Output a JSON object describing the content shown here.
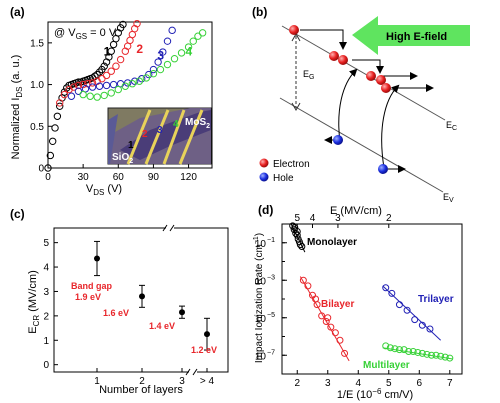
{
  "colors": {
    "black": "#000000",
    "red": "#e8262b",
    "blue": "#2121b5",
    "green": "#37d137",
    "arrow_green": "#5fe45f",
    "electron": "#e82020",
    "hole": "#1b2fe0",
    "gold": "#d9c24a",
    "substrate": "#7f7a62"
  },
  "chart_data": [
    {
      "panel": "(a)",
      "type": "scatter",
      "annotation": "@ V",
      "annotation_sub": "GS",
      "annotation_tail": " = 0 V",
      "ylabel": "Normalized I",
      "ylabel_sub": "DS",
      "ylabel_tail": " (a. u.)",
      "xlabel": "V",
      "xlabel_sub": "DS",
      "xlabel_tail": " (V)",
      "xlim": [
        0,
        140
      ],
      "ylim": [
        0,
        1.75
      ],
      "xticks": [
        0,
        30,
        60,
        90,
        120
      ],
      "yticks": [
        0,
        0.5,
        1.0,
        1.5
      ],
      "ytick_labels": [
        "0",
        "0.5",
        "1.0",
        "1.5"
      ],
      "series": [
        {
          "name": "1",
          "color": "#000000",
          "x": [
            0,
            2,
            4,
            6,
            8,
            10,
            12,
            14,
            16,
            18,
            20,
            22,
            24,
            26,
            28,
            30,
            32,
            34,
            36,
            38,
            40,
            42,
            44,
            46,
            48,
            50,
            52,
            54,
            56,
            58,
            60,
            62,
            64
          ],
          "y": [
            0,
            0.15,
            0.32,
            0.48,
            0.62,
            0.74,
            0.84,
            0.91,
            0.96,
            0.99,
            1.0,
            1.01,
            1.02,
            1.03,
            1.03,
            1.04,
            1.05,
            1.06,
            1.07,
            1.08,
            1.1,
            1.12,
            1.15,
            1.18,
            1.22,
            1.27,
            1.33,
            1.4,
            1.48,
            1.55,
            1.62,
            1.68,
            1.72
          ]
        },
        {
          "name": "2",
          "color": "#e8262b",
          "x": [
            10,
            14,
            18,
            22,
            26,
            30,
            34,
            38,
            42,
            46,
            50,
            54,
            58,
            62,
            66,
            68,
            70,
            72,
            74,
            76
          ],
          "y": [
            0.78,
            0.88,
            0.94,
            0.97,
            0.99,
            1.0,
            1.01,
            1.02,
            1.04,
            1.07,
            1.11,
            1.16,
            1.22,
            1.3,
            1.4,
            1.46,
            1.53,
            1.6,
            1.67,
            1.73
          ]
        },
        {
          "name": "3",
          "color": "#2121b5",
          "x": [
            20,
            26,
            32,
            38,
            44,
            50,
            56,
            62,
            68,
            74,
            80,
            86,
            90,
            94,
            98,
            102,
            106
          ],
          "y": [
            0.86,
            0.92,
            0.95,
            0.97,
            0.98,
            0.99,
            1.0,
            1.01,
            1.02,
            1.04,
            1.07,
            1.12,
            1.18,
            1.27,
            1.39,
            1.52,
            1.65
          ]
        },
        {
          "name": "4",
          "color": "#37d137",
          "x": [
            30,
            36,
            42,
            48,
            54,
            60,
            66,
            72,
            78,
            84,
            90,
            96,
            102,
            108,
            114,
            120,
            124,
            128,
            132
          ],
          "y": [
            0.88,
            0.86,
            0.85,
            0.87,
            0.9,
            0.94,
            0.98,
            1.01,
            1.04,
            1.08,
            1.13,
            1.18,
            1.24,
            1.31,
            1.38,
            1.45,
            1.52,
            1.58,
            1.62
          ]
        }
      ],
      "inset": {
        "label_mos2": "MoS",
        "label_mos2_sub": "2",
        "label_sio2": "SiO",
        "label_sio2_sub": "2",
        "numbers": [
          "1",
          "2",
          "3",
          "4"
        ]
      }
    },
    {
      "panel": "(c)",
      "type": "scatter",
      "ylabel": "E",
      "ylabel_sub": "CR",
      "ylabel_tail": " (MV/cm)",
      "xlabel": "Number of layers",
      "categories": [
        "1",
        "2",
        "3",
        "> 4"
      ],
      "values": [
        4.35,
        2.8,
        2.15,
        1.25
      ],
      "error": [
        0.7,
        0.45,
        0.25,
        0.65
      ],
      "annotations": [
        "Band gap",
        "1.9 eV",
        "1.6 eV",
        "1.4 eV",
        "1.2 eV"
      ],
      "ylim": [
        -0.3,
        5.6
      ],
      "yticks": [
        0,
        1,
        2,
        3,
        4,
        5
      ]
    },
    {
      "panel": "(d)",
      "type": "scatter",
      "ylabel": "Impact Ionization Rate (cm",
      "ylabel_sup": "−1",
      "ylabel_tail": ")",
      "xlabel": "1/E (10",
      "xlabel_sup": "−6",
      "xlabel_tail": " cm/V)",
      "top_xlabel": "E (MV/cm)",
      "top_xticks": [
        5,
        4,
        3,
        2
      ],
      "xlim": [
        1.5,
        7.4
      ],
      "xticks": [
        2,
        3,
        4,
        5,
        6,
        7
      ],
      "yscale": "log",
      "yexp_range": [
        -8,
        0
      ],
      "yticks_exp": [
        -7,
        -5,
        -3,
        -1
      ],
      "ytick_labels": [
        "10",
        "10",
        "10",
        "10"
      ],
      "ytick_sups": [
        "−7",
        "−5",
        "−3",
        "−1"
      ],
      "series": [
        {
          "name": "Monolayer",
          "color": "#000000",
          "x": [
            1.85,
            1.9,
            1.95,
            2.0,
            2.03,
            2.07,
            2.1,
            2.15,
            2.0,
            1.92
          ],
          "y_exp": [
            -0.1,
            -0.3,
            -0.5,
            -0.6,
            -0.8,
            -0.95,
            -1.1,
            -1.2,
            -0.4,
            -0.2
          ],
          "fit": [
            [
              1.8,
              0.0
            ],
            [
              2.25,
              -1.5
            ]
          ]
        },
        {
          "name": "Bilayer",
          "color": "#e8262b",
          "x": [
            2.2,
            2.35,
            2.5,
            2.65,
            2.8,
            2.95,
            3.1,
            3.25,
            3.4,
            3.55,
            2.6,
            3.0
          ],
          "y_exp": [
            -3.0,
            -3.3,
            -3.8,
            -4.3,
            -4.9,
            -5.2,
            -5.5,
            -5.8,
            -6.2,
            -6.9,
            -4.0,
            -5.0
          ],
          "fit": [
            [
              2.1,
              -2.8
            ],
            [
              3.7,
              -7.3
            ]
          ]
        },
        {
          "name": "Trilayer",
          "color": "#2121b5",
          "x": [
            4.9,
            5.1,
            5.35,
            5.6,
            5.85,
            6.1,
            6.35
          ],
          "y_exp": [
            -3.4,
            -3.7,
            -4.3,
            -4.6,
            -5.1,
            -5.4,
            -5.6
          ],
          "fit": [
            [
              4.8,
              -3.3
            ],
            [
              6.7,
              -6.2
            ]
          ]
        },
        {
          "name": "Multilayer",
          "color": "#37d137",
          "x": [
            4.9,
            5.05,
            5.2,
            5.35,
            5.5,
            5.65,
            5.8,
            5.95,
            6.1,
            6.25,
            6.4,
            6.55,
            6.7,
            6.85,
            7.0
          ],
          "y_exp": [
            -6.5,
            -6.6,
            -6.65,
            -6.7,
            -6.7,
            -6.8,
            -6.8,
            -6.85,
            -6.9,
            -6.95,
            -7.0,
            -7.0,
            -7.05,
            -7.1,
            -7.15
          ],
          "fit": [
            [
              4.8,
              -6.6
            ],
            [
              7.1,
              -7.2
            ]
          ]
        }
      ]
    }
  ],
  "diagram_b": {
    "panel": "(b)",
    "arrow_label": "High E-field",
    "eg_label": "E",
    "eg_sub": "G",
    "ec_label": "E",
    "ec_sub": "C",
    "ev_label": "E",
    "ev_sub": "V",
    "legend": [
      "Electron",
      "Hole"
    ]
  },
  "panels": {
    "a": "(a)",
    "b": "(b)",
    "c": "(c)",
    "d": "(d)"
  }
}
